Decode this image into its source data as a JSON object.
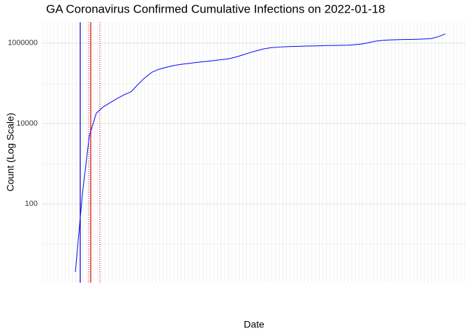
{
  "chart_data": {
    "type": "line",
    "title": "GA Coronavirus Confirmed Cumulative Infections on 2022-01-18",
    "x_label": "Date",
    "y_label": "Count (Log Scale)",
    "log_y": true,
    "grid": true,
    "ylim": [
      1,
      3300000
    ],
    "yticks": [
      100,
      10000,
      1000000
    ],
    "categories": [
      null,
      null,
      null,
      null,
      null,
      null,
      null,
      null,
      null,
      null,
      null,
      null,
      null,
      null,
      null,
      null,
      null,
      null,
      null,
      null,
      null,
      null,
      null,
      null,
      null,
      null,
      null,
      null,
      null,
      null,
      null,
      null,
      null,
      null,
      null,
      null,
      null,
      null,
      null,
      null,
      null,
      null,
      null,
      null,
      null,
      null,
      null,
      null,
      null,
      null,
      null,
      null,
      null,
      null
    ],
    "series": [
      {
        "name": null,
        "color": "#0000ff",
        "values": [
          2,
          170,
          4900,
          18000,
          26000,
          33000,
          42000,
          52000,
          62000,
          95000,
          140000,
          190000,
          225000,
          250000,
          275000,
          295000,
          310000,
          325000,
          340000,
          355000,
          370000,
          390000,
          410000,
          450000,
          510000,
          580000,
          650000,
          720000,
          770000,
          795000,
          815000,
          825000,
          835000,
          845000,
          850000,
          860000,
          870000,
          875000,
          880000,
          890000,
          910000,
          950000,
          1030000,
          1120000,
          1170000,
          1200000,
          1220000,
          1230000,
          1240000,
          1250000,
          1270000,
          1300000,
          1450000,
          1700000
        ]
      }
    ]
  }
}
